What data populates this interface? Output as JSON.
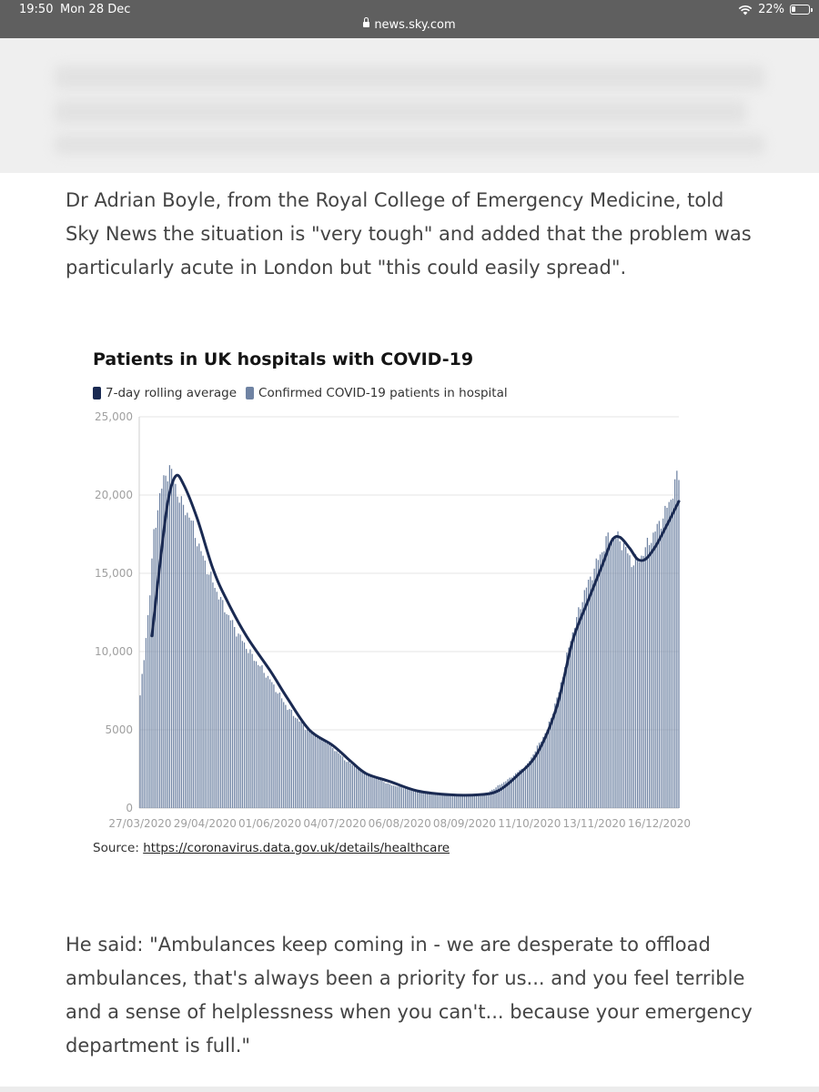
{
  "status_bar": {
    "time": "19:50",
    "date": "Mon 28 Dec",
    "battery": "22%",
    "battery_level": 0.22,
    "url": "news.sky.com"
  },
  "article": {
    "paragraph_1": "Dr Adrian Boyle, from the Royal College of Emergency Medicine, told Sky News the situation is \"very tough\" and added that the problem was particularly acute in London but \"this could easily spread\".",
    "paragraph_2": "He said: \"Ambulances keep coming in - we are desperate to offload ambulances, that's always been a priority for us... and you feel terrible and a sense of helplessness when you can't... because your emergency department is full.\""
  },
  "chart": {
    "source_prefix": "Source: ",
    "source_link": "https://coronavirus.data.gov.uk/details/healthcare"
  },
  "colors": {
    "line": "#1a2a52",
    "bars": "#6f83a3",
    "status_bar": "#5f5f5f",
    "body_text": "#444444"
  },
  "chart_data": {
    "type": "bar",
    "title": "Patients in UK hospitals with COVID-19",
    "series": [
      {
        "name": "7-day rolling average",
        "kind": "line"
      },
      {
        "name": "Confirmed COVID-19 patients in hospital",
        "kind": "bar"
      }
    ],
    "y_ticks": [
      {
        "value": 0,
        "label": "0"
      },
      {
        "value": 5000,
        "label": "5000"
      },
      {
        "value": 10000,
        "label": "10,000"
      },
      {
        "value": 15000,
        "label": "15,000"
      },
      {
        "value": 20000,
        "label": "20,000"
      },
      {
        "value": 25000,
        "label": "25,000"
      }
    ],
    "ylim": [
      0,
      25000
    ],
    "x_ticks": [
      {
        "date": "2020-03-27",
        "label": "27/03/2020"
      },
      {
        "date": "2020-04-29",
        "label": "29/04/2020"
      },
      {
        "date": "2020-06-01",
        "label": "01/06/2020"
      },
      {
        "date": "2020-07-04",
        "label": "04/07/2020"
      },
      {
        "date": "2020-08-06",
        "label": "06/08/2020"
      },
      {
        "date": "2020-09-08",
        "label": "08/09/2020"
      },
      {
        "date": "2020-10-11",
        "label": "11/10/2020"
      },
      {
        "date": "2020-11-13",
        "label": "13/11/2020"
      },
      {
        "date": "2020-12-16",
        "label": "16/12/2020"
      }
    ],
    "grid": true,
    "legend_position": "top-left",
    "bar_keypoints": [
      [
        "2020-03-27",
        7200
      ],
      [
        "2020-03-29",
        9500
      ],
      [
        "2020-04-01",
        13800
      ],
      [
        "2020-04-03",
        17500
      ],
      [
        "2020-04-06",
        20000
      ],
      [
        "2020-04-09",
        21300
      ],
      [
        "2020-04-11",
        21700
      ],
      [
        "2020-04-14",
        20600
      ],
      [
        "2020-04-17",
        19400
      ],
      [
        "2020-04-21",
        18700
      ],
      [
        "2020-04-26",
        16700
      ],
      [
        "2020-05-01",
        15000
      ],
      [
        "2020-05-08",
        13000
      ],
      [
        "2020-05-15",
        11300
      ],
      [
        "2020-05-22",
        9900
      ],
      [
        "2020-06-01",
        8200
      ],
      [
        "2020-06-10",
        6400
      ],
      [
        "2020-06-20",
        5000
      ],
      [
        "2020-07-01",
        4100
      ],
      [
        "2020-07-10",
        3000
      ],
      [
        "2020-07-20",
        2200
      ],
      [
        "2020-08-01",
        1500
      ],
      [
        "2020-08-15",
        1100
      ],
      [
        "2020-09-01",
        850
      ],
      [
        "2020-09-12",
        820
      ],
      [
        "2020-09-20",
        1000
      ],
      [
        "2020-10-01",
        1900
      ],
      [
        "2020-10-10",
        2800
      ],
      [
        "2020-10-20",
        5000
      ],
      [
        "2020-10-26",
        7400
      ],
      [
        "2020-11-01",
        10800
      ],
      [
        "2020-11-08",
        13800
      ],
      [
        "2020-11-15",
        15900
      ],
      [
        "2020-11-20",
        17300
      ],
      [
        "2020-11-24",
        17400
      ],
      [
        "2020-11-28",
        16800
      ],
      [
        "2020-12-02",
        15700
      ],
      [
        "2020-12-06",
        15900
      ],
      [
        "2020-12-10",
        16800
      ],
      [
        "2020-12-14",
        17700
      ],
      [
        "2020-12-18",
        18600
      ],
      [
        "2020-12-22",
        19800
      ],
      [
        "2020-12-25",
        21100
      ],
      [
        "2020-12-26",
        21300
      ]
    ],
    "line_keypoints": [
      [
        "2020-04-02",
        11000
      ],
      [
        "2020-04-06",
        15500
      ],
      [
        "2020-04-10",
        19500
      ],
      [
        "2020-04-14",
        21200
      ],
      [
        "2020-04-18",
        20700
      ],
      [
        "2020-04-25",
        18500
      ],
      [
        "2020-05-03",
        15300
      ],
      [
        "2020-05-10",
        13300
      ],
      [
        "2020-05-20",
        11000
      ],
      [
        "2020-06-01",
        8800
      ],
      [
        "2020-06-10",
        7000
      ],
      [
        "2020-06-21",
        5000
      ],
      [
        "2020-07-03",
        4000
      ],
      [
        "2020-07-12",
        3000
      ],
      [
        "2020-07-20",
        2200
      ],
      [
        "2020-08-01",
        1700
      ],
      [
        "2020-08-15",
        1100
      ],
      [
        "2020-09-01",
        850
      ],
      [
        "2020-09-15",
        850
      ],
      [
        "2020-09-25",
        1100
      ],
      [
        "2020-10-05",
        2100
      ],
      [
        "2020-10-15",
        3500
      ],
      [
        "2020-10-25",
        6500
      ],
      [
        "2020-11-02",
        10700
      ],
      [
        "2020-11-10",
        13300
      ],
      [
        "2020-11-17",
        15500
      ],
      [
        "2020-11-22",
        17100
      ],
      [
        "2020-11-26",
        17300
      ],
      [
        "2020-12-01",
        16600
      ],
      [
        "2020-12-05",
        15900
      ],
      [
        "2020-12-09",
        15900
      ],
      [
        "2020-12-14",
        16700
      ],
      [
        "2020-12-20",
        18100
      ],
      [
        "2020-12-26",
        19600
      ]
    ]
  }
}
